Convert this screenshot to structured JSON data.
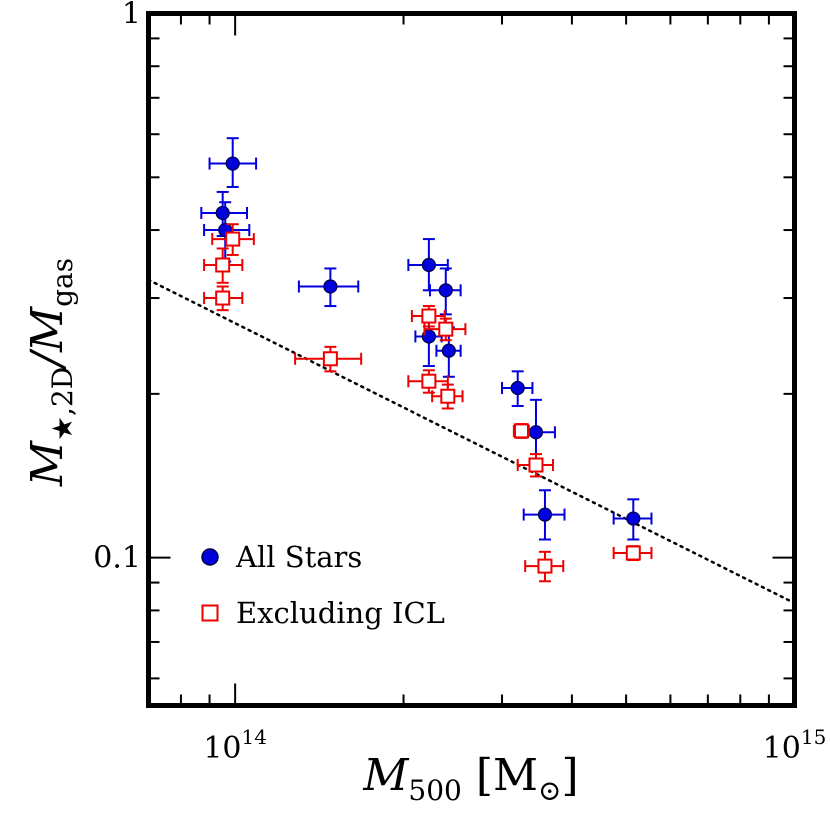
{
  "chart_data": {
    "type": "scatter",
    "xscale": "log",
    "yscale": "log",
    "xlim": [
      70000000000000.0,
      1000000000000000.0
    ],
    "ylim": [
      0.0535,
      1.0
    ],
    "grid": false,
    "xticks": [
      {
        "value": 100000000000000.0,
        "label_base": "10",
        "label_exp": "14"
      },
      {
        "value": 1000000000000000.0,
        "label_base": "10",
        "label_exp": "15"
      }
    ],
    "yticks": [
      {
        "value": 1.0,
        "label": "1"
      },
      {
        "value": 0.1,
        "label": "0.1"
      }
    ],
    "xlabel": {
      "symbol": "M",
      "sub": "500",
      "unit": " [M",
      "unit_sub": "⊙",
      "close": "]"
    },
    "ylabel": {
      "symbol": "M",
      "sub": "★,2D",
      "slash": "/",
      "symbol2": "M",
      "sub2": "gas"
    },
    "legend": {
      "position": "lower-left",
      "entries": [
        {
          "label": "All Stars",
          "color": "#0000dd",
          "marker": "filled-circle"
        },
        {
          "label": "Excluding ICL",
          "color": "#ee0000",
          "marker": "open-square"
        }
      ]
    },
    "fit_line": {
      "style": "dotted",
      "color": "#000000",
      "x": [
        70000000000000.0,
        1000000000000000.0
      ],
      "y": [
        0.324,
        0.0825
      ]
    },
    "series": [
      {
        "name": "All Stars",
        "color": "#0000dd",
        "marker": "filled-circle",
        "points": [
          {
            "x": 99000000000000.0,
            "y": 0.53,
            "xerr": [
              9000000000000.0,
              10000000000000.0
            ],
            "yerr": [
              0.05,
              0.06
            ]
          },
          {
            "x": 95000000000000.0,
            "y": 0.43,
            "xerr": [
              8000000000000.0,
              10000000000000.0
            ],
            "yerr": [
              0.04,
              0.04
            ]
          },
          {
            "x": 96000000000000.0,
            "y": 0.4,
            "xerr": [
              8000000000000.0,
              10000000000000.0
            ],
            "yerr": [
              0.05,
              0.05
            ]
          },
          {
            "x": 148000000000000.0,
            "y": 0.315,
            "xerr": [
              18000000000000.0,
              18000000000000.0
            ],
            "yerr": [
              0.025,
              0.025
            ]
          },
          {
            "x": 222000000000000.0,
            "y": 0.345,
            "xerr": [
              18000000000000.0,
              18000000000000.0
            ],
            "yerr": [
              0.035,
              0.04
            ]
          },
          {
            "x": 238000000000000.0,
            "y": 0.31,
            "xerr": [
              15000000000000.0,
              15000000000000.0
            ],
            "yerr": [
              0.03,
              0.03
            ]
          },
          {
            "x": 222000000000000.0,
            "y": 0.255,
            "xerr": [
              12000000000000.0,
              12000000000000.0
            ],
            "yerr": [
              0.03,
              0.03
            ]
          },
          {
            "x": 241000000000000.0,
            "y": 0.24,
            "xerr": [
              12000000000000.0,
              12000000000000.0
            ],
            "yerr": [
              0.025,
              0.025
            ]
          },
          {
            "x": 320000000000000.0,
            "y": 0.205,
            "xerr": [
              20000000000000.0,
              20000000000000.0
            ],
            "yerr": [
              0.015,
              0.015
            ]
          },
          {
            "x": 345000000000000.0,
            "y": 0.17,
            "xerr": [
              25000000000000.0,
              28000000000000.0
            ],
            "yerr": [
              0.02,
              0.025
            ]
          },
          {
            "x": 358000000000000.0,
            "y": 0.12,
            "xerr": [
              30000000000000.0,
              30000000000000.0
            ],
            "yerr": [
              0.012,
              0.013
            ]
          },
          {
            "x": 515000000000000.0,
            "y": 0.118,
            "xerr": [
              40000000000000.0,
              40000000000000.0
            ],
            "yerr": [
              0.01,
              0.01
            ]
          }
        ]
      },
      {
        "name": "Excluding ICL",
        "color": "#ee0000",
        "marker": "open-square",
        "points": [
          {
            "x": 99000000000000.0,
            "y": 0.385,
            "xerr": [
              8000000000000.0,
              9000000000000.0
            ],
            "yerr": [
              0.025,
              0.025
            ]
          },
          {
            "x": 95000000000000.0,
            "y": 0.345,
            "xerr": [
              7000000000000.0,
              8000000000000.0
            ],
            "yerr": [
              0.025,
              0.025
            ]
          },
          {
            "x": 95000000000000.0,
            "y": 0.3,
            "xerr": [
              7000000000000.0,
              8000000000000.0
            ],
            "yerr": [
              0.015,
              0.015
            ]
          },
          {
            "x": 148000000000000.0,
            "y": 0.232,
            "xerr": [
              20000000000000.0,
              20000000000000.0
            ],
            "yerr": [
              0.012,
              0.012
            ]
          },
          {
            "x": 222000000000000.0,
            "y": 0.278,
            "xerr": [
              15000000000000.0,
              15000000000000.0
            ],
            "yerr": [
              0.012,
              0.012
            ]
          },
          {
            "x": 238000000000000.0,
            "y": 0.263,
            "xerr": [
              20000000000000.0,
              20000000000000.0
            ],
            "yerr": [
              0.012,
              0.012
            ]
          },
          {
            "x": 222000000000000.0,
            "y": 0.211,
            "xerr": [
              18000000000000.0,
              18000000000000.0
            ],
            "yerr": [
              0.01,
              0.01
            ]
          },
          {
            "x": 240000000000000.0,
            "y": 0.198,
            "xerr": [
              15000000000000.0,
              15000000000000.0
            ],
            "yerr": [
              0.01,
              0.01
            ]
          },
          {
            "x": 325000000000000.0,
            "y": 0.171,
            "xerr": [
              10000000000000.0,
              10000000000000.0
            ],
            "yerr": [
              0.005,
              0.005
            ]
          },
          {
            "x": 345000000000000.0,
            "y": 0.148,
            "xerr": [
              25000000000000.0,
              25000000000000.0
            ],
            "yerr": [
              0.007,
              0.007
            ]
          },
          {
            "x": 358000000000000.0,
            "y": 0.0965,
            "xerr": [
              28000000000000.0,
              28000000000000.0
            ],
            "yerr": [
              0.006,
              0.006
            ]
          },
          {
            "x": 515000000000000.0,
            "y": 0.102,
            "xerr": [
              40000000000000.0,
              40000000000000.0
            ],
            "yerr": [
              0.003,
              0.003
            ]
          }
        ]
      }
    ]
  }
}
